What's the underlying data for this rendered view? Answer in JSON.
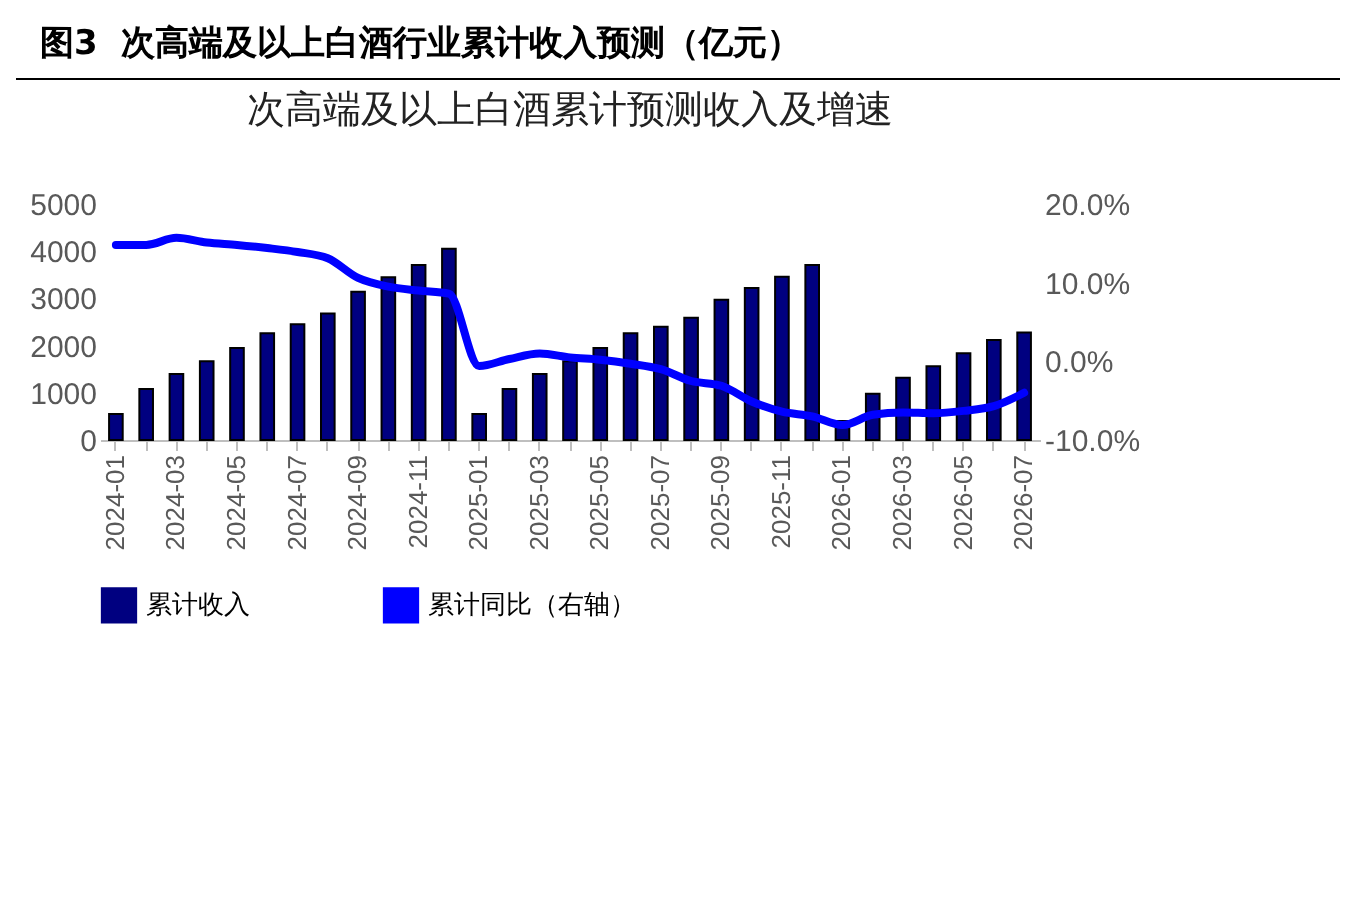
{
  "chart_data": {
    "type": "bar",
    "title": "图3  次高端及以上白酒行业累计收入预测（亿元）",
    "subtitle": "次高端及以上白酒累计预测收入及增速",
    "categories": [
      "2024-01",
      null,
      "2024-03",
      null,
      "2024-05",
      null,
      "2024-07",
      null,
      "2024-09",
      null,
      "2024-11",
      null,
      "2025-01",
      null,
      "2025-03",
      null,
      "2025-05",
      null,
      "2025-07",
      null,
      "2025-09",
      null,
      "2025-11",
      null,
      "2026-01",
      null,
      "2026-03",
      null,
      "2026-05",
      null,
      "2026-07"
    ],
    "series": [
      {
        "name": "累计收入",
        "color": "#000080",
        "values": [
          550,
          1080,
          1400,
          1670,
          1950,
          2260,
          2450,
          2680,
          3140,
          3450,
          3710,
          4050,
          550,
          1080,
          1400,
          1670,
          1950,
          2260,
          2400,
          2590,
          2970,
          3220,
          3460,
          3710,
          400,
          980,
          1320,
          1560,
          1840,
          2120,
          2280
        ]
      },
      {
        "name": "累计同比（右轴）",
        "type": "line",
        "axis": "y2",
        "color": "#0000ff",
        "values": [
          14.8,
          14.8,
          15.7,
          15.1,
          14.8,
          14.4,
          13.9,
          13.1,
          10.6,
          9.5,
          9.0,
          8.6,
          -0.6,
          0.3,
          1.0,
          0.5,
          0.2,
          -0.3,
          -1.0,
          -2.5,
          -3.1,
          -5.1,
          -6.4,
          -7.0,
          -8.1,
          -6.8,
          -6.5,
          -6.6,
          -6.3,
          -5.7,
          -4.0
        ]
      }
    ],
    "ylim": [
      0,
      5000
    ],
    "yticks": [
      0,
      1000,
      2000,
      3000,
      4000,
      5000
    ],
    "y2lim": [
      -10,
      20
    ],
    "y2ticks": [
      {
        "value": -10,
        "label": "-10.0%"
      },
      {
        "value": 0,
        "label": "0.0%"
      },
      {
        "value": 10,
        "label": "10.0%"
      },
      {
        "value": 20,
        "label": "20.0%"
      }
    ],
    "legend": "bottom",
    "grid": false
  }
}
